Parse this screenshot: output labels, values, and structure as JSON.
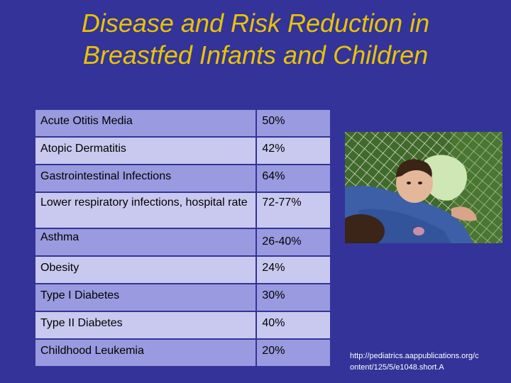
{
  "slide": {
    "title_line1": "Disease and Risk Reduction in",
    "title_line2": "Breastfed Infants and Children",
    "citation_line1": "http://pediatrics.aappublications.org/c",
    "citation_line2": "ontent/125/5/e1048.short.A"
  },
  "table": {
    "rows": [
      {
        "condition": "Acute Otitis Media",
        "reduction": "50%"
      },
      {
        "condition": "Atopic Dermatitis",
        "reduction": "42%"
      },
      {
        "condition": "Gastrointestinal Infections",
        "reduction": "64%"
      },
      {
        "condition": "Lower respiratory infections, hospital rate",
        "reduction": "72-77%"
      },
      {
        "condition": "Asthma",
        "reduction": "26-40%"
      },
      {
        "condition": "Obesity",
        "reduction": "24%"
      },
      {
        "condition": "Type I Diabetes",
        "reduction": "30%"
      },
      {
        "condition": "Type II Diabetes",
        "reduction": "40%"
      },
      {
        "condition": "Childhood Leukemia",
        "reduction": "20%"
      }
    ]
  },
  "colors": {
    "background": "#333399",
    "title": "#e8c400",
    "row_dark": "#9a9ae0",
    "row_light": "#c9c9ef"
  }
}
